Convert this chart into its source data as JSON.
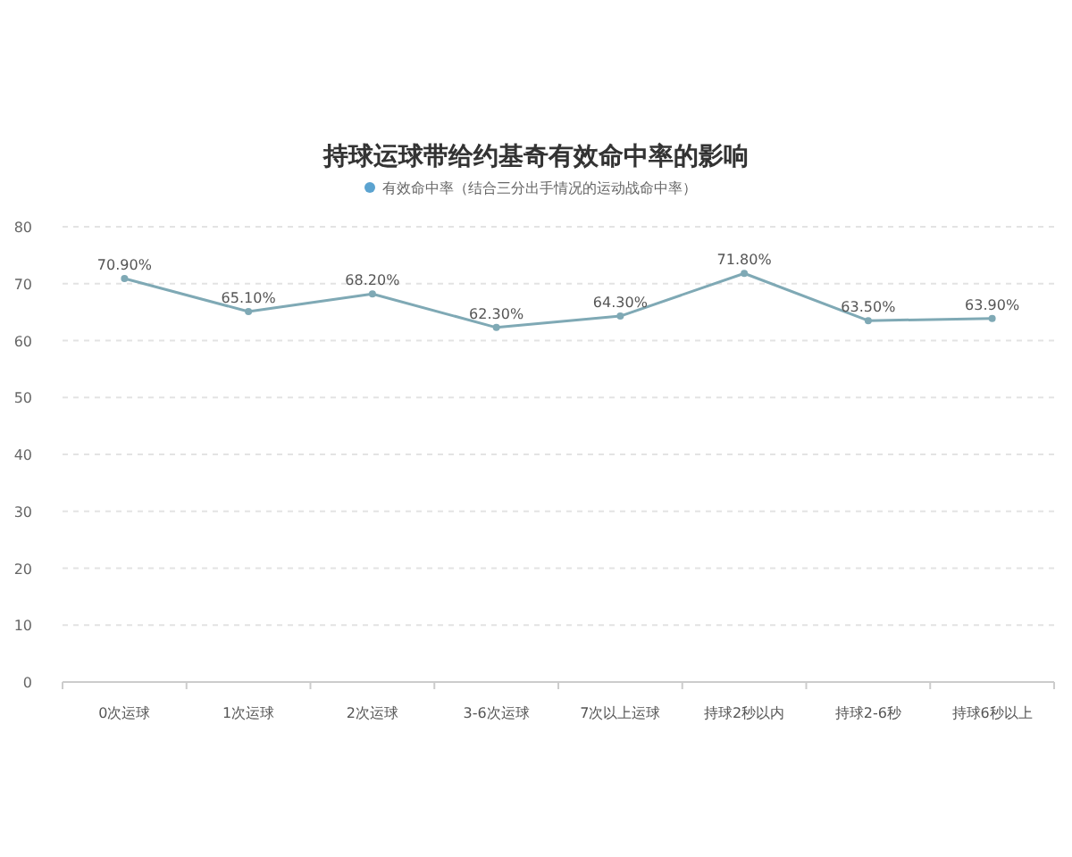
{
  "chart_data": {
    "type": "line",
    "title": "持球运球带给约基奇有效命中率的影响",
    "categories": [
      "0次运球",
      "1次运球",
      "2次运球",
      "3-6次运球",
      "7次以上运球",
      "持球2秒以内",
      "持球2-6秒",
      "持球6秒以上"
    ],
    "series": [
      {
        "name": "有效命中率（结合三分出手情况的运动战命中率）",
        "color": "#7fa9b5",
        "values": [
          70.9,
          65.1,
          68.2,
          62.3,
          64.3,
          71.8,
          63.5,
          63.9
        ],
        "value_labels": [
          "70.90%",
          "65.10%",
          "68.20%",
          "62.30%",
          "64.30%",
          "71.80%",
          "63.50%",
          "63.90%"
        ]
      }
    ],
    "ylim": [
      0,
      80
    ],
    "yticks": [
      0,
      10,
      20,
      30,
      40,
      50,
      60,
      70,
      80
    ],
    "grid": "y",
    "legend": "top",
    "marker": "circle",
    "line_style": "solid"
  }
}
